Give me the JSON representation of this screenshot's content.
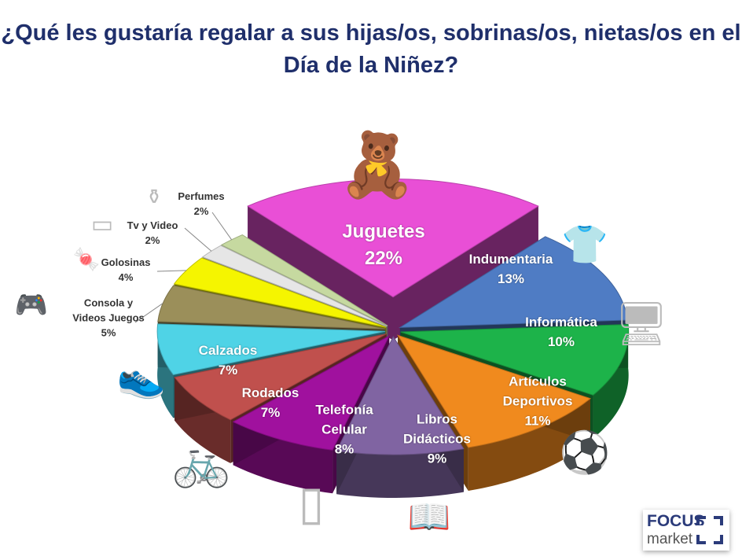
{
  "title": "¿Qué les gustaría regalar a sus hijas/os, sobrinas/os, nietas/os en el Día de la Niñez?",
  "chart_data": {
    "type": "pie",
    "title": "¿Qué les gustaría regalar a sus hijas/os, sobrinas/os, nietas/os en el Día de la Niñez?",
    "style": "3d-exploded",
    "slices": [
      {
        "label": "Juguetes",
        "value": 22,
        "pct": "22%",
        "color": "#e94fd6",
        "icon": "toys-image"
      },
      {
        "label": "Indumentaria",
        "value": 13,
        "pct": "13%",
        "color": "#4f7cc4",
        "icon": "tshirt-icon"
      },
      {
        "label": "Informática",
        "value": 10,
        "pct": "10%",
        "color": "#1db34a",
        "icon": "computer-icon"
      },
      {
        "label": "Artículos Deportivos",
        "value": 11,
        "pct": "11%",
        "color": "#f08a1e",
        "icon": "soccer-ball-icon"
      },
      {
        "label": "Libros Didácticos",
        "value": 9,
        "pct": "9%",
        "color": "#8064a2",
        "icon": "book-icon"
      },
      {
        "label": "Telefonía Celular",
        "value": 8,
        "pct": "8%",
        "color": "#a0119e",
        "icon": "smartphone-icon"
      },
      {
        "label": "Rodados",
        "value": 7,
        "pct": "7%",
        "color": "#c0504d",
        "icon": "bicycle-icon"
      },
      {
        "label": "Calzados",
        "value": 7,
        "pct": "7%",
        "color": "#4fd3e6",
        "icon": "sneakers-icon"
      },
      {
        "label": "Consola y Videos Juegos",
        "value": 5,
        "pct": "5%",
        "color": "#9b8f5a",
        "icon": "game-console-icon"
      },
      {
        "label": "Golosinas",
        "value": 4,
        "pct": "4%",
        "color": "#f5f500",
        "icon": "candy-icon"
      },
      {
        "label": "Tv y Video",
        "value": 2,
        "pct": "2%",
        "color": "#e6e6e6",
        "icon": "tv-icon"
      },
      {
        "label": "Perfumes",
        "value": 2,
        "pct": "2%",
        "color": "#c6d9a0",
        "icon": "perfume-icon"
      }
    ]
  },
  "labels": {
    "l0": "Juguetes",
    "l1": "Indumentaria",
    "l2": "Informática",
    "l3a": "Artículos",
    "l3b": "Deportivos",
    "l4a": "Libros",
    "l4b": "Didácticos",
    "l5a": "Telefonía",
    "l5b": "Celular",
    "l6": "Rodados",
    "l7": "Calzados",
    "l8a": "Consola y",
    "l8b": "Videos Juegos",
    "l9": "Golosinas",
    "l10": "Tv y Video",
    "l11": "Perfumes"
  },
  "logo": {
    "line1": "FOCUS",
    "line2": "market"
  }
}
